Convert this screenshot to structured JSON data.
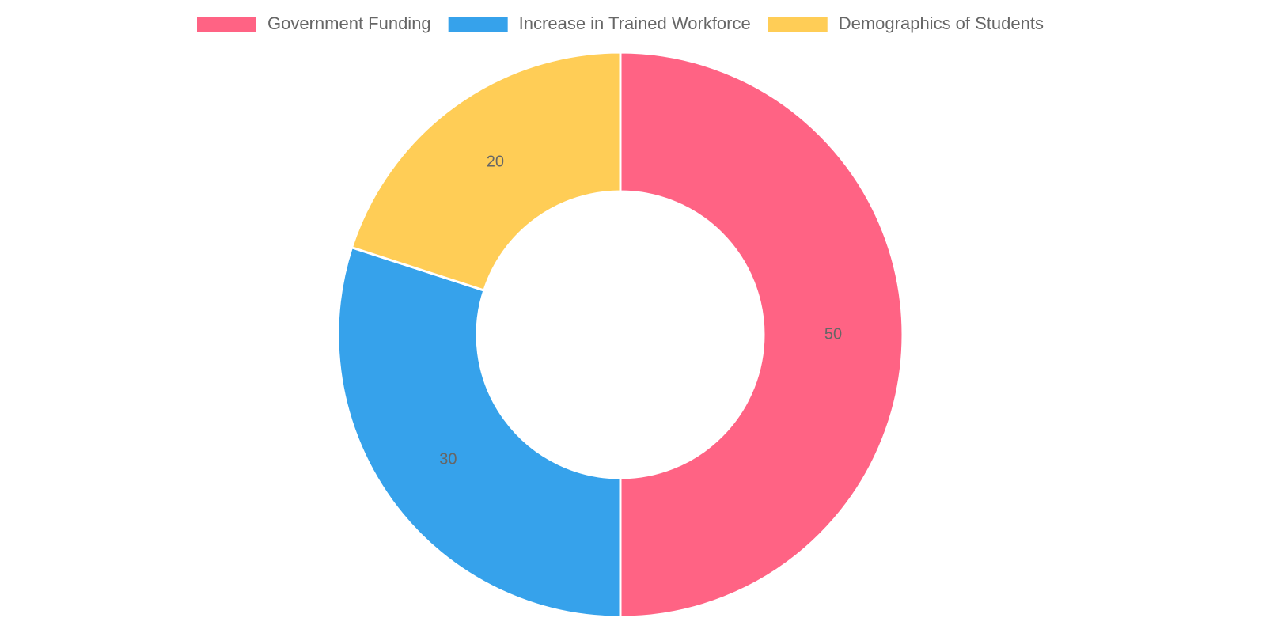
{
  "chart_data": {
    "type": "doughnut",
    "categories": [
      "Government Funding",
      "Increase in Trained Workforce",
      "Demographics of Students"
    ],
    "values": [
      50,
      30,
      20
    ],
    "colors": [
      "#ff6384",
      "#36a2eb",
      "#ffcd56"
    ]
  }
}
